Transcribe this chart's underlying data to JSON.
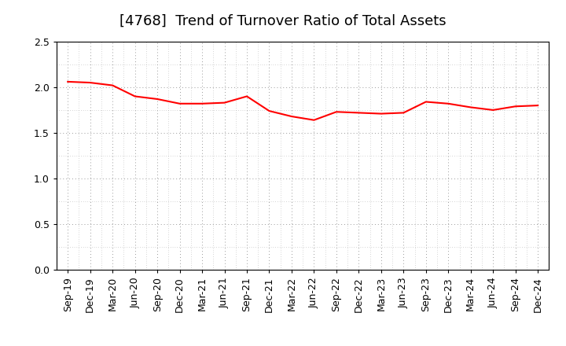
{
  "title": "[4768]  Trend of Turnover Ratio of Total Assets",
  "labels": [
    "Sep-19",
    "Dec-19",
    "Mar-20",
    "Jun-20",
    "Sep-20",
    "Dec-20",
    "Mar-21",
    "Jun-21",
    "Sep-21",
    "Dec-21",
    "Mar-22",
    "Jun-22",
    "Sep-22",
    "Dec-22",
    "Mar-23",
    "Jun-23",
    "Sep-23",
    "Dec-23",
    "Mar-24",
    "Jun-24",
    "Sep-24",
    "Dec-24"
  ],
  "values": [
    2.06,
    2.05,
    2.02,
    1.9,
    1.87,
    1.82,
    1.82,
    1.83,
    1.9,
    1.74,
    1.68,
    1.64,
    1.73,
    1.72,
    1.71,
    1.72,
    1.84,
    1.82,
    1.78,
    1.75,
    1.79,
    1.8
  ],
  "line_color": "#ff0000",
  "line_width": 1.5,
  "ylim": [
    0.0,
    2.5
  ],
  "yticks": [
    0.0,
    0.5,
    1.0,
    1.5,
    2.0,
    2.5
  ],
  "background_color": "#ffffff",
  "grid_color": "#999999",
  "title_fontsize": 13,
  "tick_fontsize": 9
}
